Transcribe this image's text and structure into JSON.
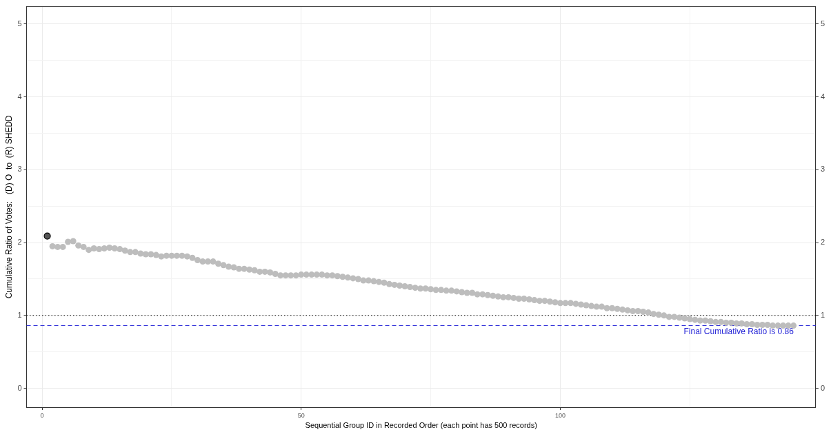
{
  "chart_data": {
    "type": "scatter",
    "xlabel": "Sequential Group ID in Recorded Order (each point has 500 records)",
    "ylabel": "Cumulative Ratio of Votes:   (D) O  to  (R) SHEDD",
    "series": [
      {
        "color": "#bdbdbd",
        "x": [
          2,
          3,
          4,
          5,
          6,
          7,
          8,
          9,
          10,
          11,
          12,
          13,
          14,
          15,
          16,
          17,
          18,
          19,
          20,
          21,
          22,
          23,
          24,
          25,
          26,
          27,
          28,
          29,
          30,
          31,
          32,
          33,
          34,
          35,
          36,
          37,
          38,
          39,
          40,
          41,
          42,
          43,
          44,
          45,
          46,
          47,
          48,
          49,
          50,
          51,
          52,
          53,
          54,
          55,
          56,
          57,
          58,
          59,
          60,
          61,
          62,
          63,
          64,
          65,
          66,
          67,
          68,
          69,
          70,
          71,
          72,
          73,
          74,
          75,
          76,
          77,
          78,
          79,
          80,
          81,
          82,
          83,
          84,
          85,
          86,
          87,
          88,
          89,
          90,
          91,
          92,
          93,
          94,
          95,
          96,
          97,
          98,
          99,
          100,
          101,
          102,
          103,
          104,
          105,
          106,
          107,
          108,
          109,
          110,
          111,
          112,
          113,
          114,
          115,
          116,
          117,
          118,
          119,
          120,
          121,
          122,
          123,
          124,
          125,
          126,
          127,
          128,
          129,
          130,
          131,
          132,
          133,
          134,
          135,
          136,
          137,
          138,
          139,
          140,
          141,
          142,
          143,
          144,
          145
        ],
        "values": [
          1.95,
          1.94,
          1.94,
          2.01,
          2.02,
          1.96,
          1.94,
          1.9,
          1.92,
          1.91,
          1.92,
          1.93,
          1.92,
          1.91,
          1.89,
          1.87,
          1.87,
          1.85,
          1.84,
          1.84,
          1.83,
          1.81,
          1.82,
          1.82,
          1.82,
          1.82,
          1.81,
          1.79,
          1.76,
          1.74,
          1.74,
          1.74,
          1.71,
          1.69,
          1.67,
          1.66,
          1.64,
          1.64,
          1.63,
          1.62,
          1.6,
          1.6,
          1.59,
          1.57,
          1.55,
          1.55,
          1.55,
          1.55,
          1.56,
          1.56,
          1.56,
          1.56,
          1.56,
          1.55,
          1.55,
          1.54,
          1.53,
          1.52,
          1.51,
          1.5,
          1.48,
          1.48,
          1.47,
          1.46,
          1.45,
          1.43,
          1.42,
          1.41,
          1.4,
          1.39,
          1.38,
          1.37,
          1.37,
          1.36,
          1.35,
          1.35,
          1.34,
          1.34,
          1.33,
          1.32,
          1.31,
          1.31,
          1.29,
          1.29,
          1.28,
          1.27,
          1.26,
          1.25,
          1.25,
          1.24,
          1.23,
          1.23,
          1.22,
          1.21,
          1.2,
          1.2,
          1.19,
          1.18,
          1.17,
          1.17,
          1.17,
          1.16,
          1.15,
          1.14,
          1.13,
          1.12,
          1.12,
          1.1,
          1.1,
          1.09,
          1.08,
          1.07,
          1.06,
          1.06,
          1.05,
          1.04,
          1.02,
          1.01,
          1.0,
          0.98,
          0.98,
          0.97,
          0.96,
          0.95,
          0.94,
          0.93,
          0.93,
          0.92,
          0.91,
          0.91,
          0.9,
          0.9,
          0.89,
          0.89,
          0.88,
          0.88,
          0.87,
          0.87,
          0.87,
          0.86,
          0.86,
          0.86,
          0.86,
          0.86
        ]
      },
      {
        "color": "#555555",
        "x": [
          1
        ],
        "values": [
          2.09
        ]
      }
    ],
    "xlim": [
      -3,
      149.3
    ],
    "xticks": [
      0,
      {
        "value": 25,
        "label": null
      },
      50,
      {
        "value": 75,
        "label": null
      },
      100,
      {
        "value": 125,
        "label": null
      }
    ],
    "ylim": [
      -0.26,
      5.24
    ],
    "yticks": [
      0,
      {
        "value": 0.5,
        "label": null
      },
      1,
      {
        "value": 1.5,
        "label": null
      },
      2,
      {
        "value": 2.5,
        "label": null
      },
      3,
      {
        "value": 3.5,
        "label": null
      },
      4,
      {
        "value": 4.5,
        "label": null
      },
      5
    ],
    "y2lim": [
      -0.26,
      5.24
    ],
    "y2ticks": [
      0,
      1,
      2,
      3,
      4,
      5
    ],
    "ref_lines": [
      {
        "axis": "y",
        "value": 1,
        "line_style": "dotted",
        "color": "#000000"
      },
      {
        "axis": "y",
        "value": 0.86,
        "line_style": "dashed",
        "color": "#1f1fd6",
        "label": "Final Cumulative Ratio is 0.86"
      }
    ],
    "grid": true,
    "marker": "circle"
  }
}
